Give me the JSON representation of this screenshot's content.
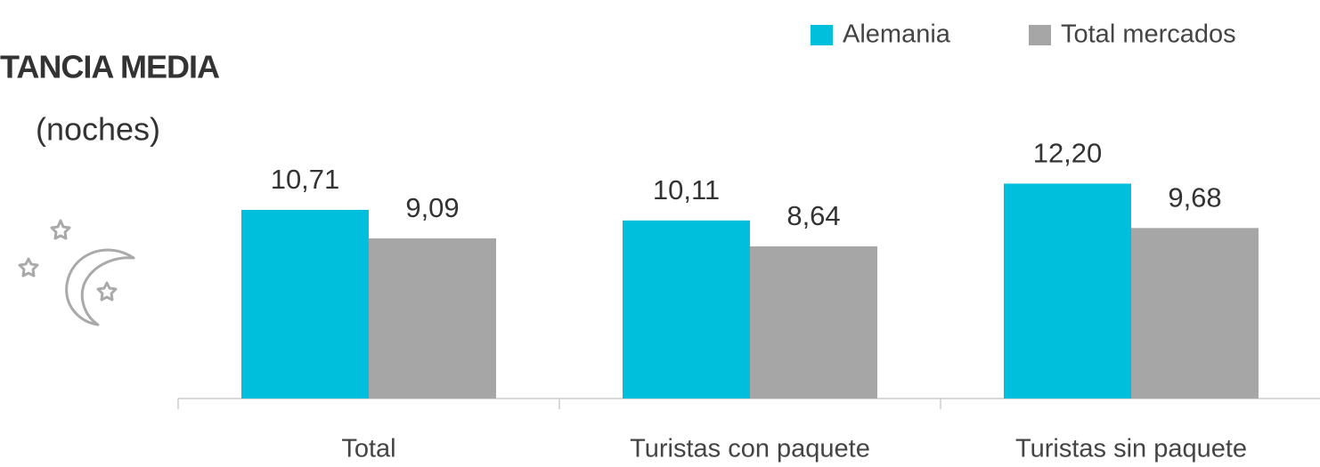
{
  "chart_data": {
    "type": "bar",
    "title": "TANCIA MEDIA",
    "subtitle": "(noches)",
    "categories": [
      "Total",
      "Turistas con paquete",
      "Turistas sin paquete"
    ],
    "series": [
      {
        "name": "Alemania",
        "color": "#00bfdc",
        "values": [
          10.71,
          10.11,
          12.2
        ],
        "value_labels": [
          "10,71",
          "10,11",
          "12,20"
        ]
      },
      {
        "name": "Total mercados",
        "color": "#a6a6a6",
        "values": [
          9.09,
          8.64,
          9.68
        ],
        "value_labels": [
          "9,09",
          "8,64",
          "9,68"
        ]
      }
    ]
  }
}
